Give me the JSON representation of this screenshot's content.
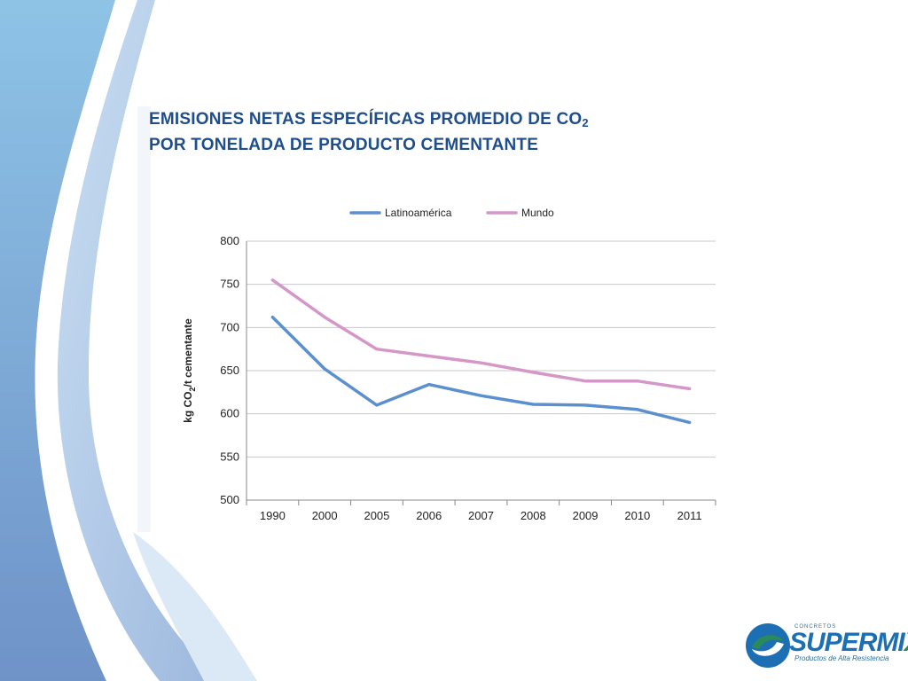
{
  "slide": {
    "title_line1": "EMISIONES NETAS ESPECÍFICAS PROMEDIO DE CO",
    "title_line1_sub": "2",
    "title_line2": "POR TONELADA DE PRODUCTO CEMENTANTE"
  },
  "logo": {
    "top_text": "CONCRETOS",
    "brand_main": "SUPERMI",
    "brand_x": "X",
    "tagline": "Productos de Alta Resistencia"
  },
  "chart_data": {
    "type": "line",
    "categories": [
      "1990",
      "2000",
      "2005",
      "2006",
      "2007",
      "2008",
      "2009",
      "2010",
      "2011"
    ],
    "series": [
      {
        "name": "Latinoamérica",
        "color": "#5b8fcf",
        "values": [
          712,
          652,
          610,
          634,
          621,
          611,
          610,
          605,
          590
        ]
      },
      {
        "name": "Mundo",
        "color": "#d597c8",
        "values": [
          755,
          712,
          675,
          667,
          659,
          648,
          638,
          638,
          629
        ]
      }
    ],
    "ylabel_parts": [
      "kg CO",
      "2",
      "/t cementante"
    ],
    "ylim": [
      500,
      800
    ],
    "yticks": [
      500,
      550,
      600,
      650,
      700,
      750,
      800
    ],
    "grid": true,
    "legend_position": "top-center"
  }
}
